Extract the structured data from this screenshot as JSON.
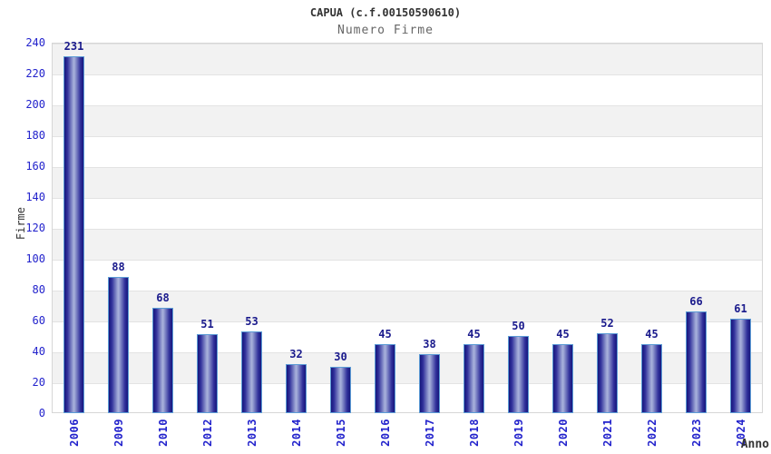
{
  "header": {
    "title": "CAPUA (c.f.00150590610)",
    "subtitle": "Numero Firme"
  },
  "chart_data": {
    "type": "bar",
    "title": "CAPUA (c.f.00150590610)",
    "subtitle": "Numero Firme",
    "xlabel": "Anno",
    "ylabel": "Firme",
    "categories": [
      "2006",
      "2009",
      "2010",
      "2012",
      "2013",
      "2014",
      "2015",
      "2016",
      "2017",
      "2018",
      "2019",
      "2020",
      "2021",
      "2022",
      "2023",
      "2024"
    ],
    "values": [
      231,
      88,
      68,
      51,
      53,
      32,
      30,
      45,
      38,
      45,
      50,
      45,
      52,
      45,
      66,
      61
    ],
    "ylim": [
      0,
      240
    ],
    "ytick_step": 20,
    "yticks": [
      0,
      20,
      40,
      60,
      80,
      100,
      120,
      140,
      160,
      180,
      200,
      220,
      240
    ],
    "grid": "alternating-horizontal-bands",
    "legend": "none",
    "colors": {
      "bar_dark": "#16167c",
      "bar_light": "#aab2dc",
      "bar_border": "#5b9bd5",
      "axis_tick_text": "#2222cc",
      "value_label_text": "#1a1a8c",
      "title_text": "#333333",
      "subtitle_text": "#666666",
      "band_gray": "#f2f2f2",
      "band_white": "#ffffff",
      "plot_border": "#d6d6d6"
    }
  }
}
